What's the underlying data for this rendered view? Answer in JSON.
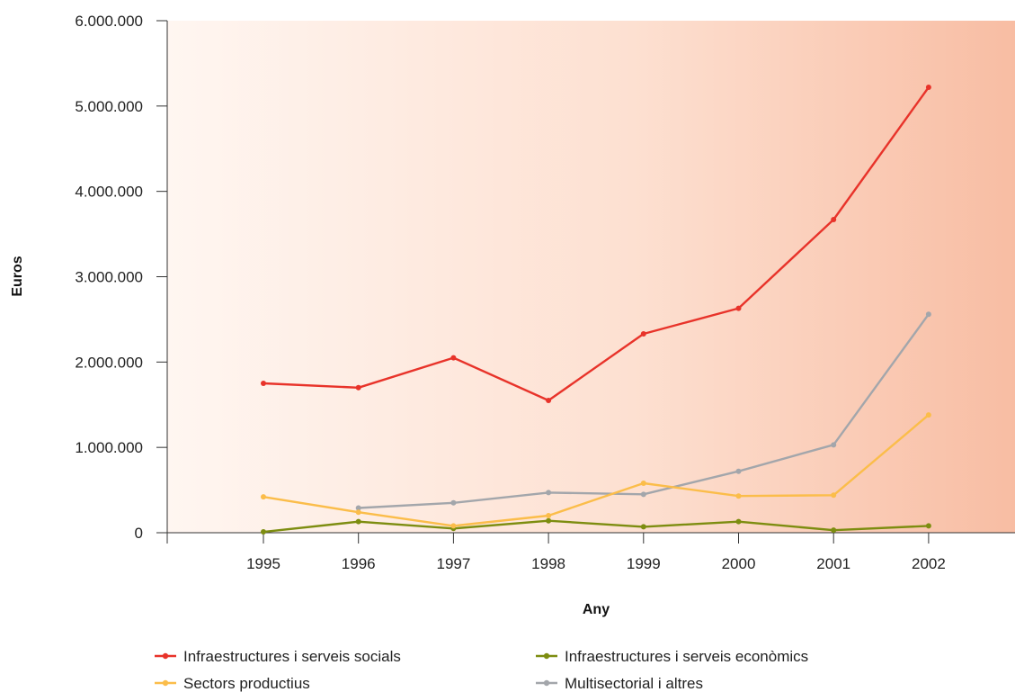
{
  "chart_data": {
    "type": "line",
    "xlabel": "Any",
    "ylabel": "Euros",
    "categories": [
      "1995",
      "1996",
      "1997",
      "1998",
      "1999",
      "2000",
      "2001",
      "2002"
    ],
    "ylim": [
      0,
      6000000
    ],
    "yticks": [
      0,
      1000000,
      2000000,
      3000000,
      4000000,
      5000000,
      6000000
    ],
    "ytick_labels": [
      "0",
      "1.000.000",
      "2.000.000",
      "3.000.000",
      "4.000.000",
      "5.000.000",
      "6.000.000"
    ],
    "grid": false,
    "legend_position": "bottom",
    "background": "gradient from white (left) to salmon (right)",
    "series": [
      {
        "name": "Infraestructures i serveis socials",
        "color": "#e8332a",
        "values": [
          1750000,
          1700000,
          2050000,
          1550000,
          2330000,
          2630000,
          3670000,
          5220000
        ]
      },
      {
        "name": "Sectors productius",
        "color": "#fbbd4a",
        "values": [
          420000,
          240000,
          80000,
          200000,
          580000,
          430000,
          440000,
          1380000
        ]
      },
      {
        "name": "Infraestructures i serveis econòmics",
        "color": "#7d8d10",
        "values": [
          10000,
          130000,
          50000,
          140000,
          70000,
          130000,
          30000,
          80000
        ]
      },
      {
        "name": "Multisectorial i altres",
        "color": "#a3a6ab",
        "values": [
          null,
          290000,
          350000,
          470000,
          450000,
          720000,
          1030000,
          2560000
        ]
      }
    ]
  }
}
